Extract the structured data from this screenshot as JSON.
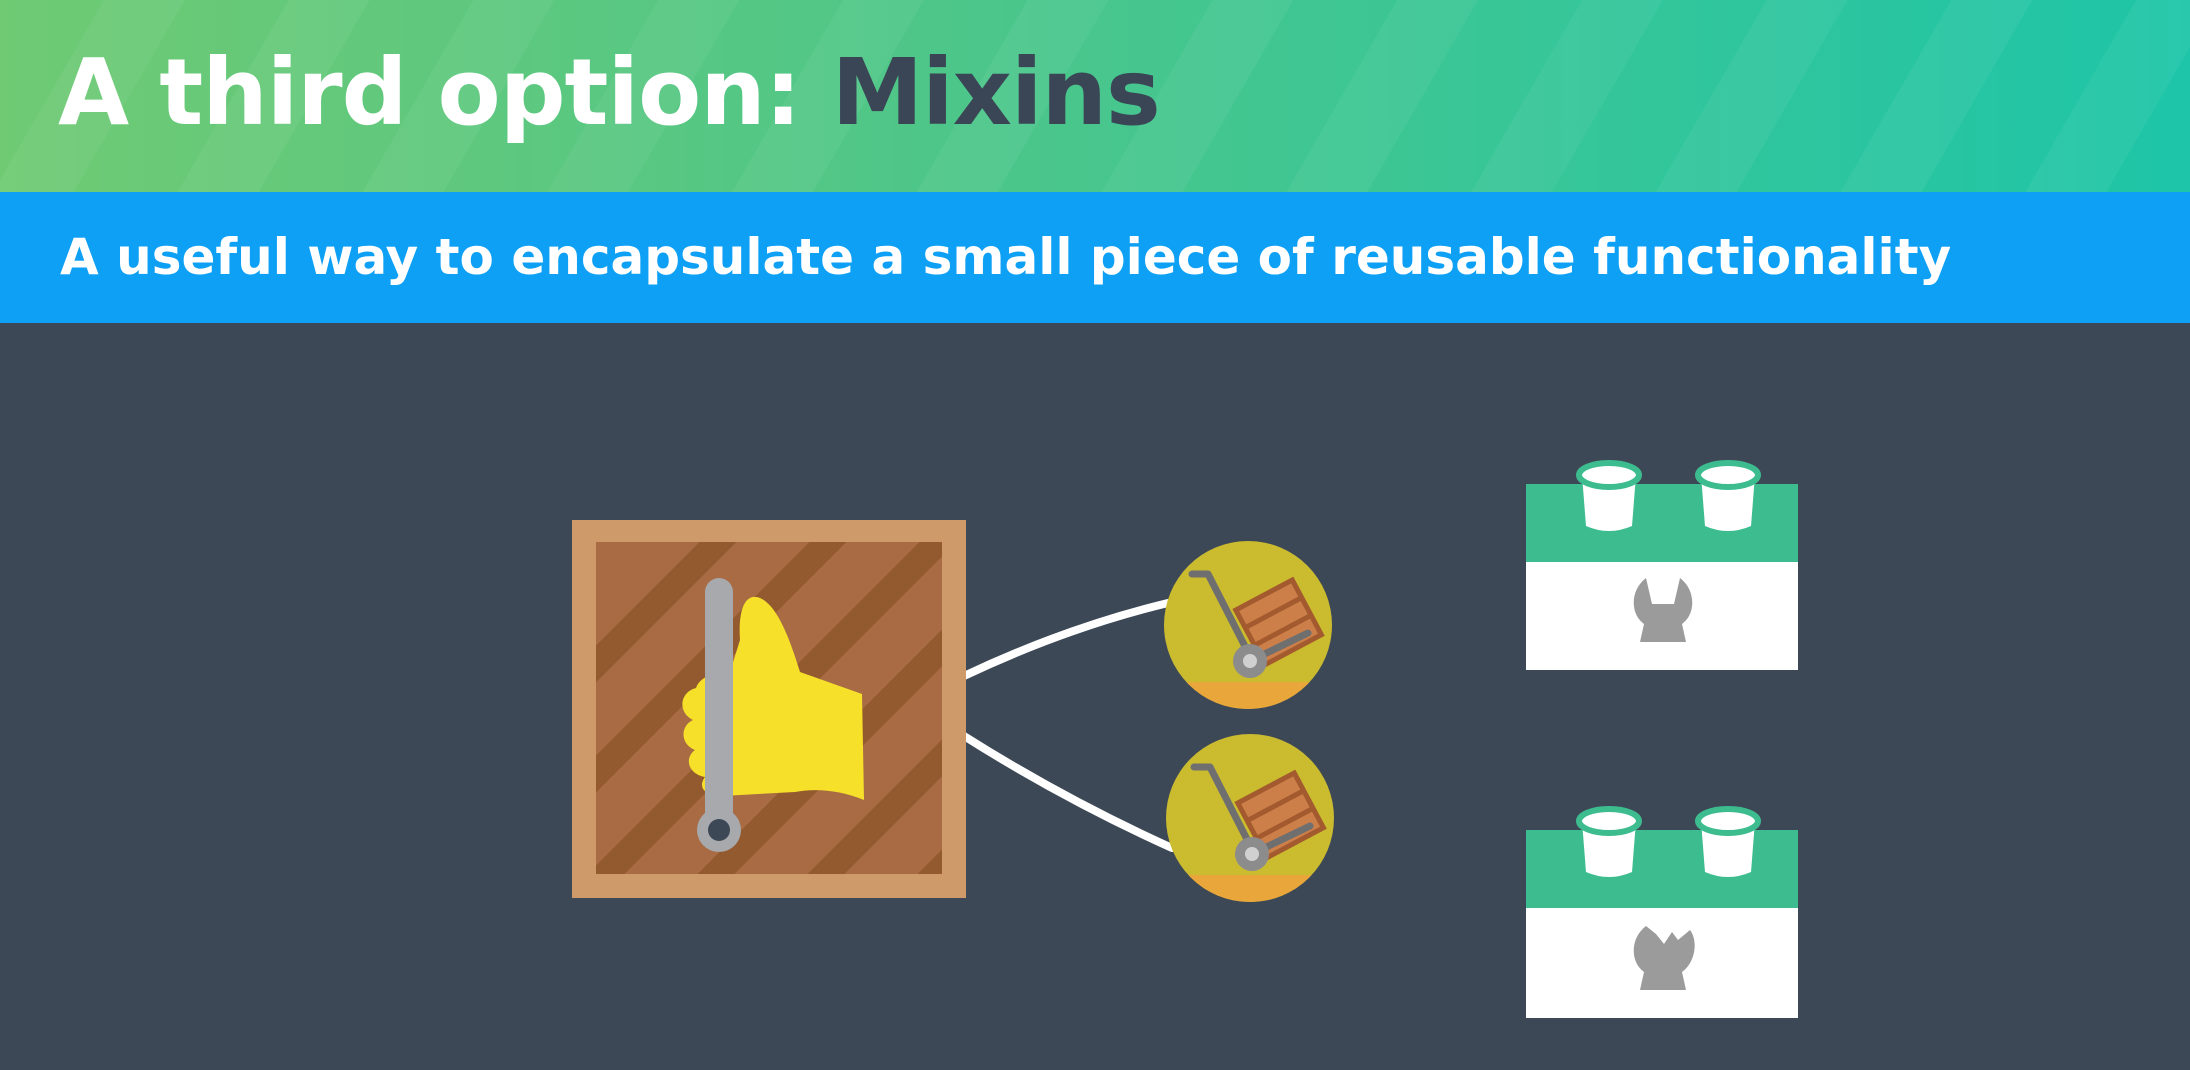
{
  "slide": {
    "title_prefix": "A third option: ",
    "title_accent": "Mixins",
    "subtitle": "A useful way to encapsulate a small piece of reusable functionality"
  },
  "colors": {
    "background": "#3d4856",
    "title_gradient_start": "#6fca73",
    "title_gradient_end": "#1ec5a8",
    "subtitle_bar": "#0ea0f5",
    "crate_frame": "#cf9a6a",
    "crate_wood": "#a86b43",
    "thumb": "#f6e02a",
    "dolly_badge": "#cbbb2f",
    "block_top": "#3dbd8f",
    "block_body": "#ffffff",
    "connector": "#ffffff"
  },
  "icons": {
    "main": "crate-thumbs-up-icon",
    "mixin": "hand-truck-icon",
    "block": "lego-block-icon",
    "block_tool": "wrench-icon"
  }
}
